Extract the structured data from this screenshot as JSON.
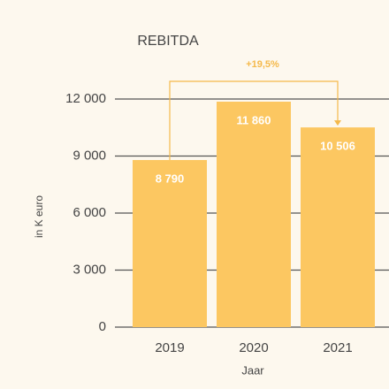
{
  "chart_data": {
    "type": "bar",
    "title": "REBITDA",
    "categories": [
      "2019",
      "2020",
      "2021"
    ],
    "values": [
      8790,
      11860,
      10506
    ],
    "value_labels": [
      "8 790",
      "11 860",
      "10 506"
    ],
    "color": "#fcc761",
    "ylim": [
      0,
      12000
    ],
    "yticks": [
      0,
      {
        "value": 3000,
        "label": "3 000"
      },
      {
        "value": 6000,
        "label": "6 000"
      },
      {
        "value": 9000,
        "label": "9 000"
      },
      {
        "value": 12000,
        "label": "12 000"
      }
    ],
    "grid": true,
    "ylabel": "in K euro",
    "xlabel": "Jaar",
    "annotation": "+19,5%"
  }
}
